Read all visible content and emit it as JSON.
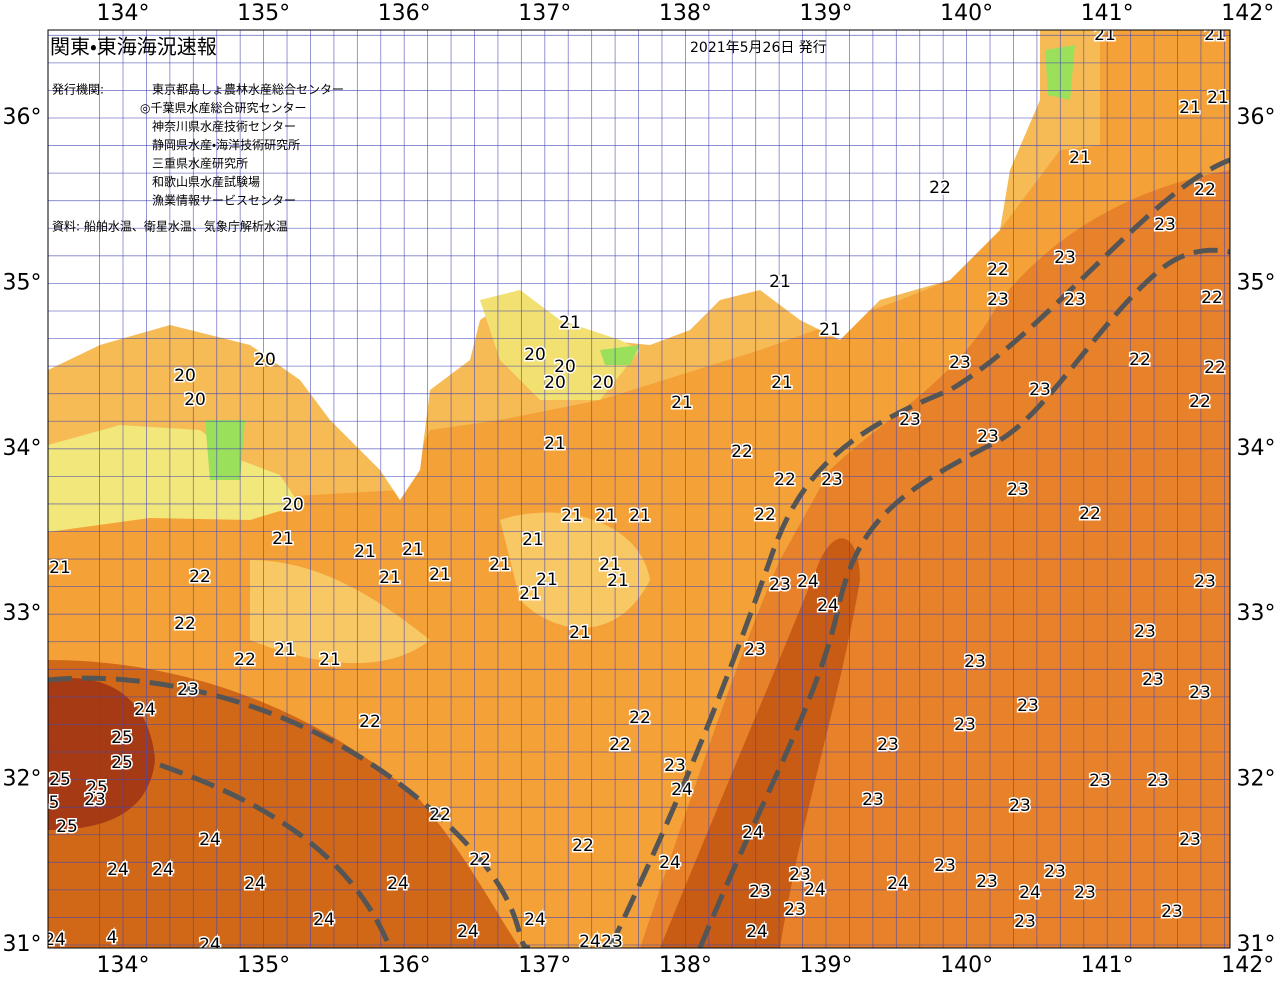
{
  "header": {
    "title": "関東・東海海況速報",
    "date": "2021年5月26日 発行",
    "issuer_label": "発行機関:",
    "issuers": [
      "東京都島しょ農林水産総合センター",
      "◎千葉県水産総合研究センター",
      "神奈川県水産技術センター",
      "静岡県水産・海洋技術研究所",
      "三重県水産研究所",
      "和歌山県水産試験場",
      "漁業情報サービスセンター"
    ],
    "source": "資料: 船舶水温、衛星水温、気象庁解析水温"
  },
  "map": {
    "lon_labels": [
      "134°",
      "135°",
      "136°",
      "137°",
      "138°",
      "139°",
      "140°",
      "141°",
      "142°"
    ],
    "lat_labels": [
      "36°",
      "35°",
      "34°",
      "33°",
      "32°",
      "31°"
    ],
    "isotherm_labels": [
      21,
      21,
      21,
      21,
      21,
      22,
      22,
      23,
      22,
      23,
      23,
      23,
      22,
      21,
      21,
      21,
      20,
      20,
      20,
      20,
      20,
      20,
      20,
      21,
      23,
      22,
      22,
      23,
      22,
      21,
      23,
      23,
      21,
      22,
      22,
      23,
      23,
      20,
      22,
      21,
      21,
      21,
      22,
      21,
      21,
      21,
      21,
      21,
      22,
      21,
      21,
      21,
      21,
      21,
      21,
      23,
      24,
      23,
      21,
      22,
      24,
      21,
      22,
      21,
      21,
      23,
      23,
      23,
      23,
      23,
      23,
      24,
      25,
      22,
      22,
      23,
      23,
      22,
      25,
      23,
      23,
      25,
      25,
      23,
      5,
      24,
      23,
      23,
      23,
      23,
      22,
      25,
      24,
      24,
      22,
      23,
      22,
      24,
      24,
      24,
      23,
      23,
      24,
      24,
      23,
      24,
      23,
      23,
      24,
      24,
      23,
      23,
      24,
      24,
      23,
      23,
      24,
      24,
      4,
      24,
      24,
      24,
      23
    ]
  }
}
